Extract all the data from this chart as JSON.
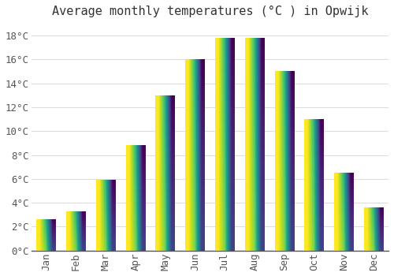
{
  "title": "Average monthly temperatures (°C ) in Opwijk",
  "months": [
    "Jan",
    "Feb",
    "Mar",
    "Apr",
    "May",
    "Jun",
    "Jul",
    "Aug",
    "Sep",
    "Oct",
    "Nov",
    "Dec"
  ],
  "values": [
    2.6,
    3.3,
    5.9,
    8.8,
    13.0,
    16.0,
    17.8,
    17.8,
    15.0,
    11.0,
    6.5,
    3.6
  ],
  "bar_color_bottom": "#FFCC33",
  "bar_color_top": "#FFA500",
  "background_color": "#FFFFFF",
  "plot_bg_color": "#FFFFFF",
  "grid_color": "#DDDDDD",
  "ylim": [
    0,
    19
  ],
  "yticks": [
    0,
    2,
    4,
    6,
    8,
    10,
    12,
    14,
    16,
    18
  ],
  "title_fontsize": 11,
  "tick_fontsize": 9,
  "font_family": "monospace"
}
